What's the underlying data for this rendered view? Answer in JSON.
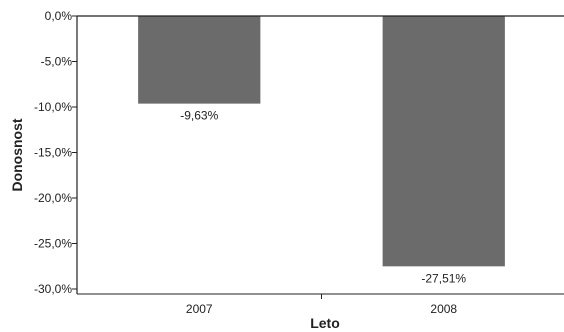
{
  "chart_data": {
    "type": "bar",
    "categories": [
      "2007",
      "2008"
    ],
    "values": [
      -9.63,
      -27.51
    ],
    "data_labels": [
      "-9,63%",
      "-27,51%"
    ],
    "xlabel": "Leto",
    "ylabel": "Donosnost",
    "ylim": [
      -30,
      0
    ],
    "yticks": [
      0,
      -5,
      -10,
      -15,
      -20,
      -25,
      -30
    ],
    "ytick_labels": [
      "0,0%",
      "-5,0%",
      "-10,0%",
      "-15,0%",
      "-20,0%",
      "-25,0%",
      "-30,0%"
    ],
    "grid": false,
    "bar_color": "#6b6b6b"
  }
}
